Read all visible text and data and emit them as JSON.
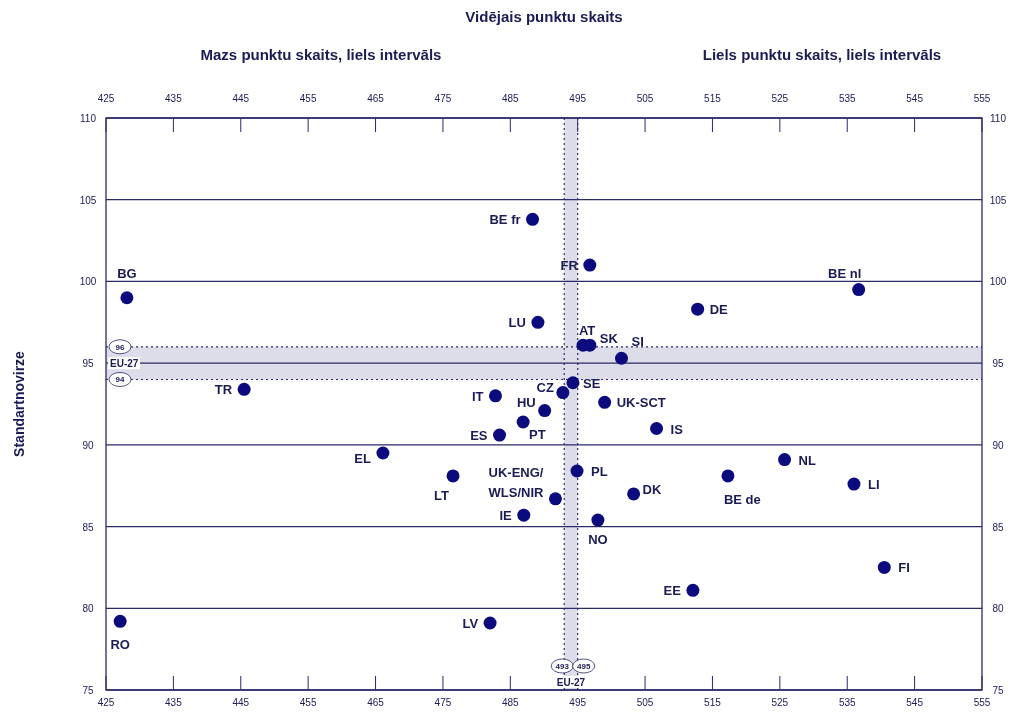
{
  "chart_data": {
    "type": "scatter",
    "x2label": "Vidējais punktu skaits",
    "ylabel": "Standartnovirze",
    "annotations": [
      "Mazs punktu skaits, liels intervāls",
      "Liels punktu skaits, liels intervāls"
    ],
    "xlim": [
      425,
      555
    ],
    "xticks": [
      425,
      435,
      445,
      455,
      465,
      475,
      485,
      495,
      505,
      515,
      525,
      535,
      545,
      555
    ],
    "x2lim": [
      425,
      555
    ],
    "x2ticks": [
      425,
      435,
      445,
      455,
      465,
      475,
      485,
      495,
      505,
      515,
      525,
      535,
      545,
      555
    ],
    "ylim": [
      75,
      110
    ],
    "yticks": [
      75,
      80,
      85,
      90,
      95,
      100,
      105,
      110
    ],
    "y2lim": [
      75,
      110
    ],
    "y2ticks": [
      75,
      80,
      85,
      90,
      95,
      100,
      105,
      110
    ],
    "grid": "y",
    "marker": "circle",
    "bands": [
      {
        "axis": "x",
        "from": 493,
        "to": 495,
        "label": "EU-27",
        "color": "#dcdde8"
      },
      {
        "axis": "y",
        "from": 94,
        "to": 96,
        "label": "EU-27",
        "color": "#dcdde8"
      }
    ],
    "ref_lines": [
      {
        "axis": "x",
        "value": 493,
        "label": "493",
        "line_style": "dotted",
        "color": "#2a2a6a"
      },
      {
        "axis": "x",
        "value": 495,
        "label": "495",
        "line_style": "dotted",
        "color": "#2a2a6a"
      },
      {
        "axis": "y",
        "value": 96,
        "label": "96",
        "line_style": "dotted",
        "color": "#2a2a6a"
      },
      {
        "axis": "y",
        "value": 94,
        "label": "94",
        "line_style": "dotted",
        "color": "#2a2a6a"
      }
    ],
    "series": [
      {
        "name": "BE fr",
        "color": "#0b0b7e",
        "x": [
          488.3
        ],
        "values": [
          103.8
        ]
      },
      {
        "name": "FR",
        "color": "#0b0b7e",
        "x": [
          496.8
        ],
        "values": [
          101.0
        ]
      },
      {
        "name": "BG",
        "color": "#0b0b7e",
        "x": [
          428.1
        ],
        "values": [
          99.0
        ]
      },
      {
        "name": "BE nl",
        "color": "#0b0b7e",
        "x": [
          536.7
        ],
        "values": [
          99.5
        ]
      },
      {
        "name": "DE",
        "color": "#0b0b7e",
        "x": [
          512.8
        ],
        "values": [
          98.3
        ]
      },
      {
        "name": "LU",
        "color": "#0b0b7e",
        "x": [
          489.1
        ],
        "values": [
          97.5
        ]
      },
      {
        "name": "AT",
        "color": "#0b0b7e",
        "x": [
          495.8
        ],
        "values": [
          96.1
        ]
      },
      {
        "name": "SK",
        "color": "#0b0b7e",
        "x": [
          496.8
        ],
        "values": [
          96.1
        ]
      },
      {
        "name": "SI",
        "color": "#0b0b7e",
        "x": [
          501.5
        ],
        "values": [
          95.3
        ]
      },
      {
        "name": "TR",
        "color": "#0b0b7e",
        "x": [
          445.5
        ],
        "values": [
          93.4
        ]
      },
      {
        "name": "SE",
        "color": "#0b0b7e",
        "x": [
          494.3
        ],
        "values": [
          93.8
        ]
      },
      {
        "name": "CZ",
        "color": "#0b0b7e",
        "x": [
          492.8
        ],
        "values": [
          93.2
        ]
      },
      {
        "name": "IT",
        "color": "#0b0b7e",
        "x": [
          482.8
        ],
        "values": [
          93.0
        ]
      },
      {
        "name": "HU",
        "color": "#0b0b7e",
        "x": [
          490.1
        ],
        "values": [
          92.1
        ]
      },
      {
        "name": "UK-SCT",
        "color": "#0b0b7e",
        "x": [
          499.0
        ],
        "values": [
          92.6
        ]
      },
      {
        "name": "PT",
        "color": "#0b0b7e",
        "x": [
          486.9
        ],
        "values": [
          91.4
        ]
      },
      {
        "name": "ES",
        "color": "#0b0b7e",
        "x": [
          483.4
        ],
        "values": [
          90.6
        ]
      },
      {
        "name": "IS",
        "color": "#0b0b7e",
        "x": [
          506.7
        ],
        "values": [
          91.0
        ]
      },
      {
        "name": "EL",
        "color": "#0b0b7e",
        "x": [
          466.1
        ],
        "values": [
          89.5
        ]
      },
      {
        "name": "NL",
        "color": "#0b0b7e",
        "x": [
          525.7
        ],
        "values": [
          89.1
        ]
      },
      {
        "name": "LT",
        "color": "#0b0b7e",
        "x": [
          476.5
        ],
        "values": [
          88.1
        ]
      },
      {
        "name": "PL",
        "color": "#0b0b7e",
        "x": [
          494.9
        ],
        "values": [
          88.4
        ]
      },
      {
        "name": "BE de",
        "color": "#0b0b7e",
        "x": [
          517.3
        ],
        "values": [
          88.1
        ]
      },
      {
        "name": "LI",
        "color": "#0b0b7e",
        "x": [
          536.0
        ],
        "values": [
          87.6
        ]
      },
      {
        "name": "UK-ENG/WLS/NIR",
        "color": "#0b0b7e",
        "x": [
          491.7
        ],
        "values": [
          86.7
        ]
      },
      {
        "name": "DK",
        "color": "#0b0b7e",
        "x": [
          503.3
        ],
        "values": [
          87.0
        ]
      },
      {
        "name": "IE",
        "color": "#0b0b7e",
        "x": [
          487.0
        ],
        "values": [
          85.7
        ]
      },
      {
        "name": "NO",
        "color": "#0b0b7e",
        "x": [
          498.0
        ],
        "values": [
          85.4
        ]
      },
      {
        "name": "FI",
        "color": "#0b0b7e",
        "x": [
          540.5
        ],
        "values": [
          82.5
        ]
      },
      {
        "name": "EE",
        "color": "#0b0b7e",
        "x": [
          512.1
        ],
        "values": [
          81.1
        ]
      },
      {
        "name": "RO",
        "color": "#0b0b7e",
        "x": [
          427.1
        ],
        "values": [
          79.2
        ]
      },
      {
        "name": "LV",
        "color": "#0b0b7e",
        "x": [
          482.0
        ],
        "values": [
          79.1
        ]
      }
    ]
  }
}
